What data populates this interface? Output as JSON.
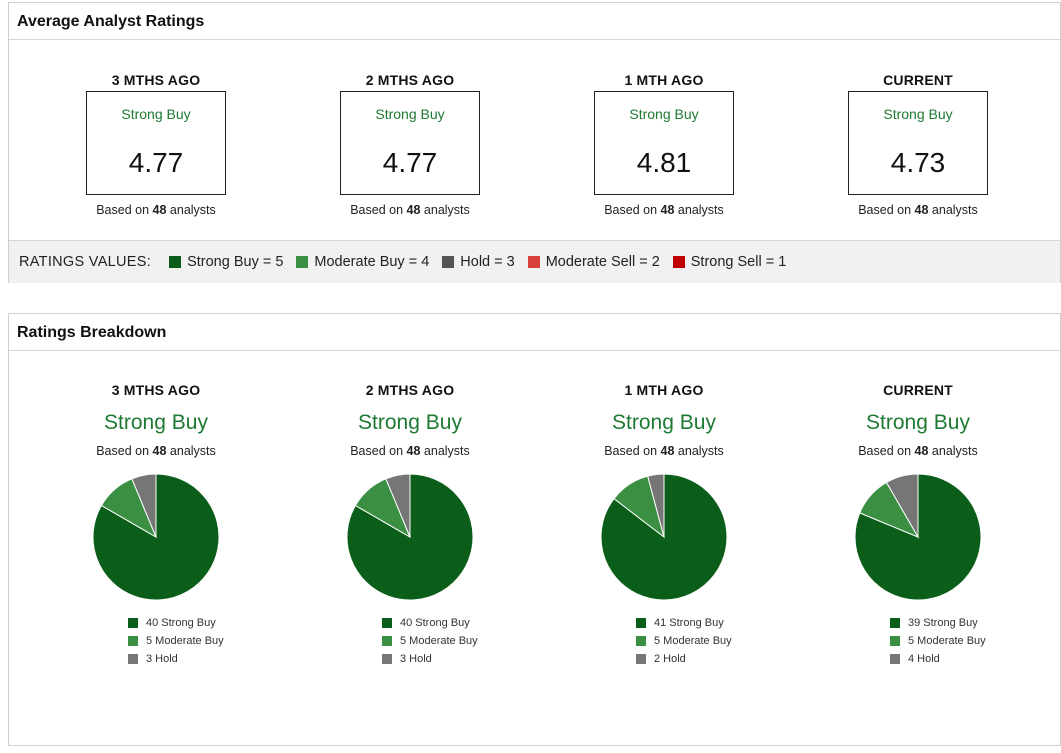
{
  "average_panel": {
    "title": "Average Analyst Ratings",
    "legend_title": "RATINGS VALUES:",
    "legend": [
      {
        "label": "Strong Buy = 5",
        "color": "#0b5e19"
      },
      {
        "label": "Moderate Buy = 4",
        "color": "#3a8f43"
      },
      {
        "label": "Hold = 3",
        "color": "#555555"
      },
      {
        "label": "Moderate Sell = 2",
        "color": "#d9403b"
      },
      {
        "label": "Strong Sell = 1",
        "color": "#c00000"
      }
    ]
  },
  "breakdown_panel": {
    "title": "Ratings Breakdown"
  },
  "periods": [
    {
      "title": "3 MTHS AGO",
      "rating": "Strong Buy",
      "score": "4.77",
      "based_prefix": "Based on",
      "analysts": "48",
      "based_suffix": "analysts"
    },
    {
      "title": "2 MTHS AGO",
      "rating": "Strong Buy",
      "score": "4.77",
      "based_prefix": "Based on",
      "analysts": "48",
      "based_suffix": "analysts"
    },
    {
      "title": "1 MTH AGO",
      "rating": "Strong Buy",
      "score": "4.81",
      "based_prefix": "Based on",
      "analysts": "48",
      "based_suffix": "analysts"
    },
    {
      "title": "CURRENT",
      "rating": "Strong Buy",
      "score": "4.73",
      "based_prefix": "Based on",
      "analysts": "48",
      "based_suffix": "analysts"
    }
  ],
  "colors": {
    "strong_buy": "#0b5e19",
    "moderate_buy": "#3a8f43",
    "hold": "#767676",
    "rating_text": "#1e7a33"
  },
  "chart_data": [
    {
      "type": "pie",
      "title": "3 MTHS AGO",
      "slices": [
        {
          "label": "Strong Buy",
          "value": 40,
          "legend": "40 Strong Buy",
          "color": "#0b5e19"
        },
        {
          "label": "Moderate Buy",
          "value": 5,
          "legend": "5 Moderate Buy",
          "color": "#3a8f43"
        },
        {
          "label": "Hold",
          "value": 3,
          "legend": "3 Hold",
          "color": "#767676"
        }
      ]
    },
    {
      "type": "pie",
      "title": "2 MTHS AGO",
      "slices": [
        {
          "label": "Strong Buy",
          "value": 40,
          "legend": "40 Strong Buy",
          "color": "#0b5e19"
        },
        {
          "label": "Moderate Buy",
          "value": 5,
          "legend": "5 Moderate Buy",
          "color": "#3a8f43"
        },
        {
          "label": "Hold",
          "value": 3,
          "legend": "3 Hold",
          "color": "#767676"
        }
      ]
    },
    {
      "type": "pie",
      "title": "1 MTH AGO",
      "slices": [
        {
          "label": "Strong Buy",
          "value": 41,
          "legend": "41 Strong Buy",
          "color": "#0b5e19"
        },
        {
          "label": "Moderate Buy",
          "value": 5,
          "legend": "5 Moderate Buy",
          "color": "#3a8f43"
        },
        {
          "label": "Hold",
          "value": 2,
          "legend": "2 Hold",
          "color": "#767676"
        }
      ]
    },
    {
      "type": "pie",
      "title": "CURRENT",
      "slices": [
        {
          "label": "Strong Buy",
          "value": 39,
          "legend": "39 Strong Buy",
          "color": "#0b5e19"
        },
        {
          "label": "Moderate Buy",
          "value": 5,
          "legend": "5 Moderate Buy",
          "color": "#3a8f43"
        },
        {
          "label": "Hold",
          "value": 4,
          "legend": "4 Hold",
          "color": "#767676"
        }
      ]
    }
  ]
}
